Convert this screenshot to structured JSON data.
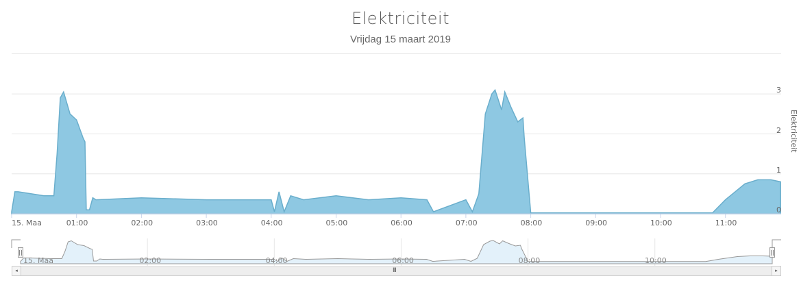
{
  "header": {
    "title": "Elektriciteit",
    "subtitle": "Vrijdag 15 maart 2019"
  },
  "colors": {
    "series_fill": "#8ec8e2",
    "series_line": "#6aaecc",
    "navigator_fill": "#e3f1fa",
    "navigator_line": "#999999",
    "grid": "#e6e6e6"
  },
  "y_axis": {
    "title": "Elektriciteit",
    "ticks": [
      "0",
      "1",
      "2",
      "3"
    ]
  },
  "x_axis": {
    "ticks": [
      "15. Maa",
      "01:00",
      "02:00",
      "03:00",
      "04:00",
      "05:00",
      "06:00",
      "07:00",
      "08:00",
      "09:00",
      "10:00",
      "11:00"
    ]
  },
  "navigator": {
    "ticks": [
      "15. Maa",
      "02:00",
      "04:00",
      "06:00",
      "08:00",
      "10:00"
    ],
    "scroll_left": "◂",
    "scroll_right": "▸",
    "grip": "III",
    "handle_glyph": "||"
  },
  "chart_data": {
    "type": "area",
    "title": "Elektriciteit",
    "subtitle": "Vrijdag 15 maart 2019",
    "xlabel": "",
    "ylabel": "Elektriciteit",
    "ylim": [
      0,
      3
    ],
    "x_ticks": [
      "15. Maa",
      "01:00",
      "02:00",
      "03:00",
      "04:00",
      "05:00",
      "06:00",
      "07:00",
      "08:00",
      "09:00",
      "10:00",
      "11:00"
    ],
    "y_ticks": [
      0,
      1,
      2,
      3
    ],
    "grid": true,
    "legend": "none",
    "x_hours": [
      0.0,
      0.05,
      0.1,
      0.5,
      0.65,
      0.7,
      0.75,
      0.8,
      0.9,
      1.0,
      1.1,
      1.13,
      1.15,
      1.2,
      1.25,
      1.3,
      2.0,
      3.0,
      4.0,
      4.05,
      4.12,
      4.2,
      4.3,
      4.5,
      5.0,
      5.5,
      6.0,
      6.4,
      6.5,
      7.0,
      7.1,
      7.2,
      7.3,
      7.4,
      7.45,
      7.55,
      7.6,
      7.7,
      7.8,
      7.88,
      7.9,
      8.0,
      9.0,
      10.0,
      10.8,
      11.0,
      11.15,
      11.3,
      11.5,
      11.7,
      11.85
    ],
    "values": [
      0.05,
      0.55,
      0.55,
      0.45,
      0.45,
      1.5,
      2.9,
      3.05,
      2.5,
      2.35,
      1.9,
      1.8,
      0.1,
      0.1,
      0.4,
      0.35,
      0.4,
      0.35,
      0.35,
      0.05,
      0.55,
      0.05,
      0.45,
      0.35,
      0.45,
      0.35,
      0.4,
      0.35,
      0.05,
      0.35,
      0.05,
      0.5,
      2.5,
      3.0,
      3.1,
      2.6,
      3.05,
      2.65,
      2.3,
      2.4,
      1.9,
      0.02,
      0.02,
      0.02,
      0.02,
      0.35,
      0.55,
      0.75,
      0.85,
      0.85,
      0.8
    ]
  }
}
